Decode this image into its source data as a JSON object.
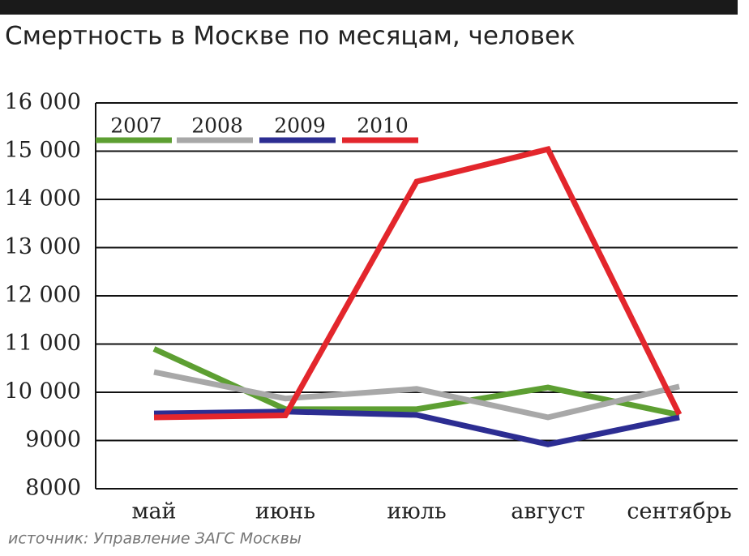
{
  "chart_data": {
    "type": "line",
    "title": "Смертность в Москве по месяцам, человек",
    "source": "источник: Управление ЗАГС Москвы",
    "categories": [
      "май",
      "июнь",
      "июль",
      "август",
      "сентябрь"
    ],
    "series": [
      {
        "name": "2007",
        "color": "#5d9f32",
        "values": [
          10900,
          9650,
          9650,
          10100,
          9530
        ]
      },
      {
        "name": "2008",
        "color": "#a8a8a8",
        "values": [
          10420,
          9870,
          10070,
          9480,
          10120
        ]
      },
      {
        "name": "2009",
        "color": "#2c2d92",
        "values": [
          9560,
          9600,
          9530,
          8920,
          9480
        ]
      },
      {
        "name": "2010",
        "color": "#e3262c",
        "values": [
          9480,
          9520,
          14370,
          15040,
          9540
        ]
      }
    ],
    "ylim": [
      8000,
      16000
    ],
    "yticks": [
      8000,
      9000,
      {
        "value": 10000,
        "label": "10 000"
      },
      {
        "value": 11000,
        "label": "11 000"
      },
      {
        "value": 12000,
        "label": "12 000"
      },
      {
        "value": 13000,
        "label": "13 000"
      },
      {
        "value": 14000,
        "label": "14 000"
      },
      {
        "value": 15000,
        "label": "15 000"
      },
      {
        "value": 16000,
        "label": "16 000"
      }
    ],
    "grid": true
  }
}
